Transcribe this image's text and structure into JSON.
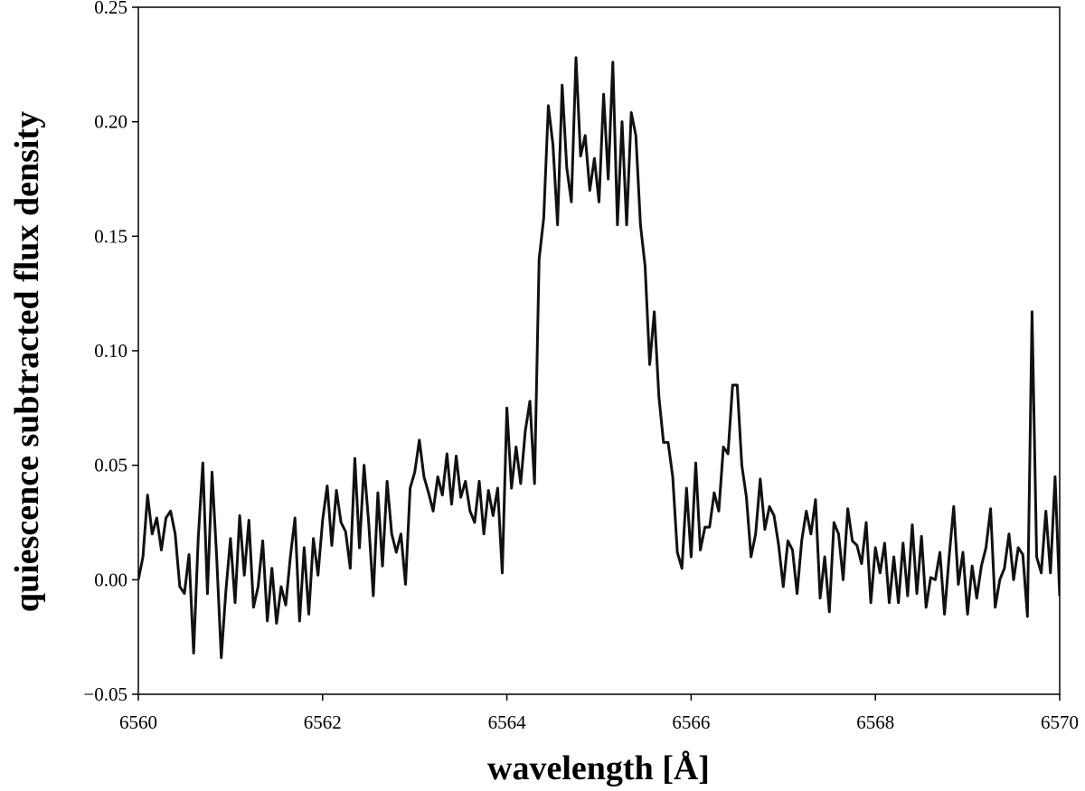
{
  "chart_data": {
    "type": "line",
    "xlabel": "wavelength [Å]",
    "ylabel": "quiescence subtracted flux density",
    "xlim": [
      6560,
      6570
    ],
    "ylim": [
      -0.05,
      0.25
    ],
    "xticks": [
      6560,
      6562,
      6564,
      6566,
      6568,
      6570
    ],
    "yticks": [
      {
        "value": -0.05,
        "label": "−0.05"
      },
      {
        "value": 0,
        "label": "0.00"
      },
      0.05,
      {
        "value": 0.1,
        "label": "0.10"
      },
      0.15,
      {
        "value": 0.2,
        "label": "0.20"
      },
      0.25
    ],
    "x": [
      6560.0,
      6560.05,
      6560.1,
      6560.15,
      6560.2,
      6560.25,
      6560.3,
      6560.35,
      6560.4,
      6560.45,
      6560.5,
      6560.55,
      6560.6,
      6560.65,
      6560.7,
      6560.75,
      6560.8,
      6560.85,
      6560.9,
      6560.95,
      6561.0,
      6561.05,
      6561.1,
      6561.15,
      6561.2,
      6561.25,
      6561.3,
      6561.35,
      6561.4,
      6561.45,
      6561.5,
      6561.55,
      6561.6,
      6561.65,
      6561.7,
      6561.75,
      6561.8,
      6561.85,
      6561.9,
      6561.95,
      6562.0,
      6562.05,
      6562.1,
      6562.15,
      6562.2,
      6562.25,
      6562.3,
      6562.35,
      6562.4,
      6562.45,
      6562.5,
      6562.55,
      6562.6,
      6562.65,
      6562.7,
      6562.75,
      6562.8,
      6562.85,
      6562.9,
      6562.95,
      6563.0,
      6563.05,
      6563.1,
      6563.15,
      6563.2,
      6563.25,
      6563.3,
      6563.35,
      6563.4,
      6563.45,
      6563.5,
      6563.55,
      6563.6,
      6563.65,
      6563.7,
      6563.75,
      6563.8,
      6563.85,
      6563.9,
      6563.95,
      6564.0,
      6564.05,
      6564.1,
      6564.15,
      6564.2,
      6564.25,
      6564.3,
      6564.35,
      6564.4,
      6564.45,
      6564.5,
      6564.55,
      6564.6,
      6564.65,
      6564.7,
      6564.75,
      6564.8,
      6564.85,
      6564.9,
      6564.95,
      6565.0,
      6565.05,
      6565.1,
      6565.15,
      6565.2,
      6565.25,
      6565.3,
      6565.35,
      6565.4,
      6565.45,
      6565.5,
      6565.55,
      6565.6,
      6565.65,
      6565.7,
      6565.75,
      6565.8,
      6565.85,
      6565.9,
      6565.95,
      6566.0,
      6566.05,
      6566.1,
      6566.15,
      6566.2,
      6566.25,
      6566.3,
      6566.35,
      6566.4,
      6566.45,
      6566.5,
      6566.55,
      6566.6,
      6566.65,
      6566.7,
      6566.75,
      6566.8,
      6566.85,
      6566.9,
      6566.95,
      6567.0,
      6567.05,
      6567.1,
      6567.15,
      6567.2,
      6567.25,
      6567.3,
      6567.35,
      6567.4,
      6567.45,
      6567.5,
      6567.55,
      6567.6,
      6567.65,
      6567.7,
      6567.75,
      6567.8,
      6567.85,
      6567.9,
      6567.95,
      6568.0,
      6568.05,
      6568.1,
      6568.15,
      6568.2,
      6568.25,
      6568.3,
      6568.35,
      6568.4,
      6568.45,
      6568.5,
      6568.55,
      6568.6,
      6568.65,
      6568.7,
      6568.75,
      6568.8,
      6568.85,
      6568.9,
      6568.95,
      6569.0,
      6569.05,
      6569.1,
      6569.15,
      6569.2,
      6569.25,
      6569.3,
      6569.35,
      6569.4,
      6569.45,
      6569.5,
      6569.55,
      6569.6,
      6569.65,
      6569.7,
      6569.75,
      6569.8,
      6569.85,
      6569.9,
      6569.95,
      6570.0
    ],
    "series": [
      {
        "color": "#111111",
        "values": [
          0.0,
          0.01,
          0.037,
          0.02,
          0.027,
          0.013,
          0.027,
          0.03,
          0.02,
          -0.003,
          -0.006,
          0.011,
          -0.032,
          0.018,
          0.051,
          -0.006,
          0.047,
          0.01,
          -0.034,
          -0.005,
          0.018,
          -0.01,
          0.028,
          0.002,
          0.026,
          -0.012,
          -0.003,
          0.017,
          -0.018,
          0.005,
          -0.019,
          -0.003,
          -0.011,
          0.01,
          0.027,
          -0.018,
          0.014,
          -0.015,
          0.018,
          0.002,
          0.026,
          0.041,
          0.015,
          0.039,
          0.025,
          0.021,
          0.005,
          0.053,
          0.014,
          0.05,
          0.025,
          -0.007,
          0.038,
          0.006,
          0.043,
          0.02,
          0.012,
          0.02,
          -0.002,
          0.04,
          0.047,
          0.061,
          0.045,
          0.038,
          0.03,
          0.045,
          0.037,
          0.055,
          0.033,
          0.054,
          0.036,
          0.043,
          0.03,
          0.025,
          0.043,
          0.02,
          0.039,
          0.028,
          0.04,
          0.003,
          0.075,
          0.04,
          0.058,
          0.042,
          0.065,
          0.078,
          0.042,
          0.14,
          0.158,
          0.207,
          0.19,
          0.155,
          0.216,
          0.18,
          0.165,
          0.228,
          0.185,
          0.194,
          0.17,
          0.184,
          0.165,
          0.212,
          0.175,
          0.226,
          0.155,
          0.2,
          0.155,
          0.204,
          0.194,
          0.155,
          0.137,
          0.094,
          0.117,
          0.08,
          0.06,
          0.06,
          0.045,
          0.012,
          0.005,
          0.04,
          0.01,
          0.051,
          0.013,
          0.023,
          0.023,
          0.038,
          0.03,
          0.058,
          0.055,
          0.085,
          0.085,
          0.05,
          0.036,
          0.01,
          0.02,
          0.044,
          0.022,
          0.032,
          0.028,
          0.015,
          -0.003,
          0.017,
          0.013,
          -0.006,
          0.017,
          0.03,
          0.02,
          0.035,
          -0.008,
          0.01,
          -0.014,
          0.025,
          0.02,
          0.0,
          0.031,
          0.017,
          0.015,
          0.007,
          0.025,
          -0.01,
          0.014,
          0.003,
          0.016,
          -0.01,
          0.01,
          -0.01,
          0.016,
          -0.007,
          0.024,
          -0.006,
          0.019,
          -0.012,
          0.001,
          0.0,
          0.012,
          -0.015,
          0.01,
          0.032,
          -0.002,
          0.012,
          -0.015,
          0.006,
          -0.008,
          0.006,
          0.014,
          0.031,
          -0.012,
          0.0,
          0.005,
          0.02,
          0.0,
          0.014,
          0.011,
          -0.016,
          0.117,
          0.01,
          0.003,
          0.03,
          0.003,
          0.045,
          -0.007
        ]
      }
    ]
  }
}
